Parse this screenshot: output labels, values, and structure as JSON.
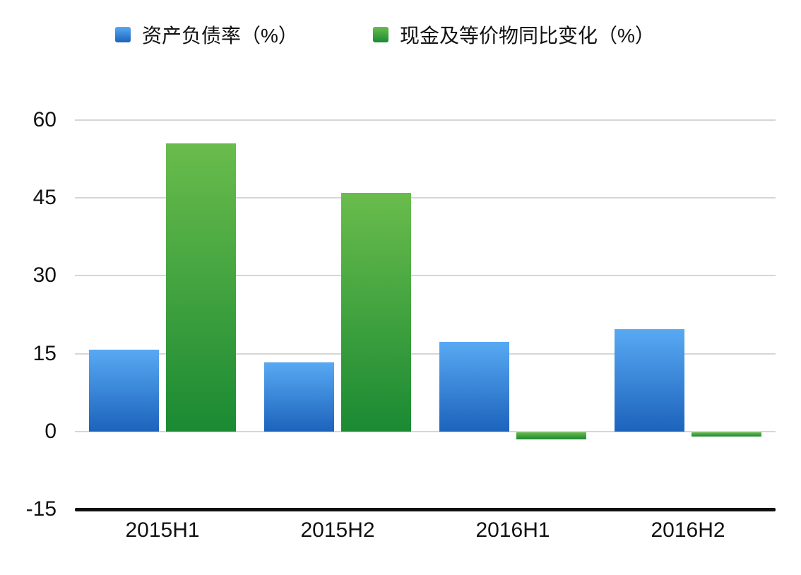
{
  "chart_data": {
    "type": "bar",
    "title": "",
    "categories": [
      "2015H1",
      "2015H2",
      "2016H1",
      "2016H2"
    ],
    "series": [
      {
        "name": "资产负债率（%）",
        "values": [
          15.7,
          13.3,
          17.2,
          19.7
        ],
        "color_top": "#58a9f3",
        "color_bottom": "#1c63bc"
      },
      {
        "name": "现金及等价物同比变化（%）",
        "values": [
          55.5,
          46,
          -1.4,
          -0.9
        ],
        "color_top": "#6abc4c",
        "color_bottom": "#1a8a33"
      }
    ],
    "xlabel": "",
    "ylabel": "",
    "ylim": [
      -15,
      60
    ],
    "yticks": [
      60,
      45,
      30,
      15,
      0,
      -15
    ],
    "grid": true,
    "legend_position": "top"
  },
  "palette": {
    "background": "#ffffff",
    "gridline": "#d6d6d6",
    "axis_line": "#111111",
    "text": "#111111"
  }
}
